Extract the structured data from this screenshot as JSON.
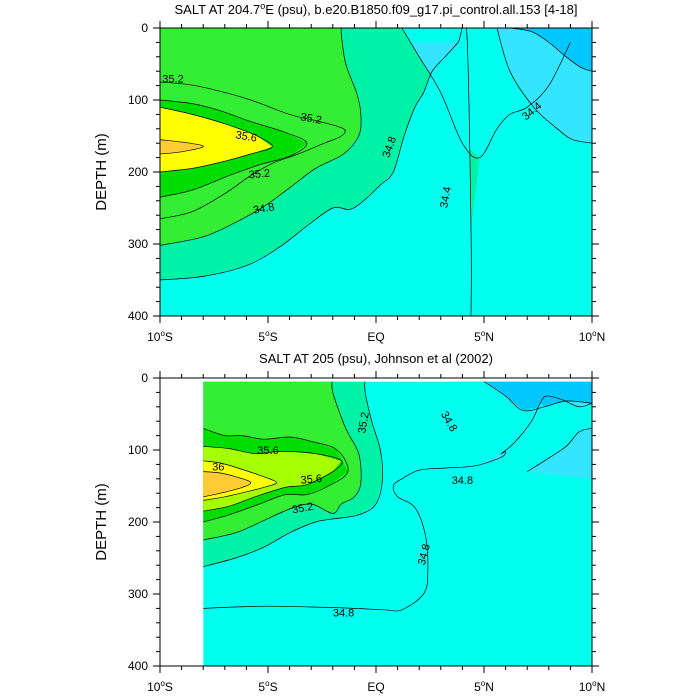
{
  "chart_data": [
    {
      "type": "contour",
      "title": "SALT AT 204.7",
      "title_sup": "o",
      "title_rest": "E (psu), b.e20.B1850.f09_g17.pi_control.all.153 [4-18]",
      "ylabel": "DEPTH (m)",
      "xlim": [
        -10,
        10
      ],
      "ylim": [
        400,
        0
      ],
      "xticks": [
        {
          "value": -10,
          "num": "10",
          "sup": "o",
          "hemi": "S"
        },
        {
          "value": -5,
          "num": "5",
          "sup": "o",
          "hemi": "S"
        },
        {
          "value": 0,
          "num": "EQ",
          "sup": "",
          "hemi": ""
        },
        {
          "value": 5,
          "num": "5",
          "sup": "o",
          "hemi": "N"
        },
        {
          "value": 10,
          "num": "10",
          "sup": "o",
          "hemi": "N"
        }
      ],
      "yticks": [
        "0",
        "100",
        "200",
        "300",
        "400"
      ],
      "ytick_values": [
        0,
        100,
        200,
        300,
        400
      ],
      "contour_levels": [
        34.2,
        34.4,
        34.8,
        35.0,
        35.2,
        35.4,
        35.6,
        35.8
      ],
      "fill_colors": [
        "#00c8ff",
        "#33e5ff",
        "#00ffee",
        "#00f2a6",
        "#33ee33",
        "#00dd00",
        "#ffff00",
        "#ffcc33"
      ],
      "contours": [
        {
          "level": 34.2,
          "x": [
            6.2,
            7.2,
            8.0,
            8.8,
            9.5,
            10.0
          ],
          "y": [
            0,
            5,
            20,
            40,
            55,
            60
          ]
        },
        {
          "level": 34.4,
          "x": [
            5.6,
            6.2,
            7.3,
            8.4,
            9.1,
            10.0
          ],
          "y": [
            0,
            60,
            110,
            140,
            155,
            160
          ]
        },
        {
          "level": 34.4,
          "x": [
            1.2,
            2.0,
            3.0,
            4.0,
            4.8,
            5.6,
            6.2,
            7.0,
            8.0,
            9.0
          ],
          "y": [
            0,
            40,
            90,
            160,
            180,
            140,
            120,
            110,
            80,
            20
          ]
        },
        {
          "level": 34.8,
          "x": [
            -10.0,
            -8.0,
            -6.0,
            -4.5,
            -3.2,
            -2.0,
            -1.2,
            -0.5,
            0.2,
            0.8,
            1.3,
            1.8,
            2.2,
            2.6,
            3.2,
            3.8,
            4.2,
            4.4,
            4.4
          ],
          "y": [
            350,
            345,
            330,
            305,
            275,
            250,
            252,
            238,
            218,
            200,
            150,
            110,
            90,
            60,
            40,
            20,
            5,
            280,
            400
          ]
        },
        {
          "level": 35.0,
          "x": [
            -10.0,
            -8.0,
            -6.5,
            -5.2,
            -4.0,
            -2.8,
            -1.5,
            -0.8,
            -0.7,
            -0.9,
            -1.4,
            -1.6,
            -1.6
          ],
          "y": [
            302,
            290,
            270,
            248,
            222,
            195,
            175,
            150,
            120,
            90,
            50,
            10,
            0
          ]
        },
        {
          "level": 35.2,
          "x": [
            -10.0,
            -8.5,
            -7.0,
            -5.8,
            -4.8,
            -3.6,
            -2.4,
            -1.6,
            -1.5,
            -2.6,
            -4.0,
            -5.8,
            -7.6,
            -8.8,
            -10.0
          ],
          "y": [
            265,
            255,
            230,
            205,
            188,
            175,
            160,
            150,
            140,
            130,
            120,
            100,
            85,
            78,
            75
          ]
        },
        {
          "level": 35.4,
          "x": [
            -10.0,
            -8.5,
            -6.8,
            -5.4,
            -4.0,
            -3.2,
            -4.2,
            -5.8,
            -7.2,
            -8.5,
            -10.0
          ],
          "y": [
            235,
            225,
            205,
            190,
            178,
            160,
            145,
            130,
            115,
            105,
            100
          ]
        },
        {
          "level": 35.6,
          "x": [
            -10.0,
            -8.5,
            -7.0,
            -5.8,
            -4.8,
            -5.5,
            -6.8,
            -8.5,
            -10.0
          ],
          "y": [
            200,
            195,
            185,
            175,
            165,
            150,
            135,
            120,
            110
          ]
        },
        {
          "level": 35.8,
          "x": [
            -10.0,
            -9.0,
            -8.0,
            -8.6,
            -10.0
          ],
          "y": [
            175,
            172,
            165,
            160,
            155
          ]
        }
      ],
      "contour_labels": [
        {
          "text": "35.2",
          "x": -9.4,
          "y": 70,
          "angle": 0
        },
        {
          "text": "35.2",
          "x": -3.0,
          "y": 125,
          "angle": 10
        },
        {
          "text": "35.6",
          "x": -6.0,
          "y": 150,
          "angle": 10
        },
        {
          "text": "35.2",
          "x": -5.4,
          "y": 202,
          "angle": -5
        },
        {
          "text": "34.8",
          "x": -5.2,
          "y": 250,
          "angle": -10
        },
        {
          "text": "34.8",
          "x": 0.6,
          "y": 165,
          "angle": -70
        },
        {
          "text": "34.4",
          "x": 3.2,
          "y": 235,
          "angle": -80
        },
        {
          "text": "34.4",
          "x": 7.2,
          "y": 115,
          "angle": -40
        }
      ]
    },
    {
      "type": "contour",
      "title": "SALT AT 205 (psu), Johnson et al (2002)",
      "title_sup": "",
      "title_rest": "",
      "ylabel": "DEPTH (m)",
      "xlim": [
        -10,
        10
      ],
      "ylim": [
        400,
        0
      ],
      "data_xmin": -8,
      "xticks": [
        {
          "value": -10,
          "num": "10",
          "sup": "o",
          "hemi": "S"
        },
        {
          "value": -5,
          "num": "5",
          "sup": "o",
          "hemi": "S"
        },
        {
          "value": 0,
          "num": "EQ",
          "sup": "",
          "hemi": ""
        },
        {
          "value": 5,
          "num": "5",
          "sup": "o",
          "hemi": "N"
        },
        {
          "value": 10,
          "num": "10",
          "sup": "o",
          "hemi": "N"
        }
      ],
      "yticks": [
        "0",
        "100",
        "200",
        "300",
        "400"
      ],
      "ytick_values": [
        0,
        100,
        200,
        300,
        400
      ],
      "contour_levels": [
        34.2,
        34.4,
        34.8,
        35.0,
        35.2,
        35.4,
        35.6,
        35.8,
        36.0
      ],
      "fill_colors": [
        "#00c8ff",
        "#33e5ff",
        "#00ffee",
        "#00f2a6",
        "#33ee33",
        "#00dd00",
        "#a6ff00",
        "#ffff00",
        "#ffcc33"
      ],
      "contours": [
        {
          "level": 34.4,
          "x": [
            5.0,
            6.0,
            6.8,
            7.8,
            8.8,
            10.0
          ],
          "y": [
            5,
            25,
            45,
            40,
            32,
            35
          ]
        },
        {
          "level": 34.4,
          "x": [
            7.0,
            7.8,
            8.8,
            9.4,
            10.0
          ],
          "y": [
            130,
            115,
            95,
            75,
            70
          ]
        },
        {
          "level": 34.8,
          "x": [
            -8.0,
            -6.5,
            -5.0,
            -3.0,
            -1.0,
            0.4,
            1.2,
            2.2,
            2.4,
            2.3,
            1.8,
            1.0,
            0.8,
            1.2,
            2.0,
            3.2,
            4.6,
            5.8,
            6.0,
            5.8,
            6.4,
            7.2,
            7.6,
            7.9,
            8.6,
            9.4,
            10.0
          ],
          "y": [
            320,
            318,
            317,
            318,
            320,
            322,
            322,
            300,
            270,
            220,
            180,
            165,
            150,
            140,
            128,
            125,
            122,
            110,
            102,
            105,
            90,
            60,
            35,
            25,
            30,
            40,
            35
          ]
        },
        {
          "level": 35.0,
          "x": [
            -8.0,
            -6.5,
            -5.2,
            -4.0,
            -2.8,
            -1.8,
            -0.8,
            0.0,
            0.3,
            0.2,
            -0.2,
            -0.5,
            -0.5
          ],
          "y": [
            262,
            250,
            235,
            215,
            200,
            195,
            190,
            175,
            140,
            100,
            60,
            20,
            0
          ]
        },
        {
          "level": 35.2,
          "x": [
            -8.0,
            -6.5,
            -5.2,
            -4.0,
            -3.0,
            -2.0,
            -1.6,
            -1.0,
            -0.7,
            -0.8,
            -1.4,
            -2.0,
            -2.0
          ],
          "y": [
            225,
            215,
            198,
            182,
            175,
            188,
            175,
            165,
            145,
            105,
            70,
            20,
            0
          ]
        },
        {
          "level": 35.4,
          "x": [
            -8.0,
            -6.8,
            -5.4,
            -4.2,
            -3.2,
            -2.2,
            -1.3,
            -1.8,
            -3.0,
            -4.0,
            -5.2,
            -6.2,
            -7.0,
            -8.0
          ],
          "y": [
            200,
            190,
            175,
            162,
            162,
            150,
            130,
            100,
            88,
            82,
            85,
            80,
            80,
            70
          ]
        },
        {
          "level": 35.6,
          "x": [
            -8.0,
            -6.8,
            -5.6,
            -4.2,
            -3.2,
            -2.0,
            -1.6,
            -2.8,
            -4.4,
            -5.6,
            -6.8,
            -8.0
          ],
          "y": [
            185,
            178,
            165,
            152,
            148,
            130,
            115,
            105,
            102,
            105,
            98,
            95
          ]
        },
        {
          "level": 35.8,
          "x": [
            -8.0,
            -7.0,
            -6.0,
            -5.2,
            -4.6,
            -5.4,
            -6.4,
            -7.2,
            -8.0
          ],
          "y": [
            170,
            165,
            158,
            152,
            145,
            135,
            125,
            118,
            115
          ]
        },
        {
          "level": 36.0,
          "x": [
            -8.0,
            -7.2,
            -6.2,
            -5.8,
            -6.4,
            -7.2,
            -8.0
          ],
          "y": [
            165,
            160,
            152,
            145,
            138,
            132,
            130
          ]
        }
      ],
      "contour_labels": [
        {
          "text": "35.2",
          "x": -0.6,
          "y": 62,
          "angle": -80
        },
        {
          "text": "34.8",
          "x": 3.4,
          "y": 60,
          "angle": 60
        },
        {
          "text": "35.6",
          "x": -5.0,
          "y": 100,
          "angle": 0
        },
        {
          "text": "36",
          "x": -7.3,
          "y": 123,
          "angle": 0
        },
        {
          "text": "35.6",
          "x": -3.0,
          "y": 140,
          "angle": -5
        },
        {
          "text": "35.2",
          "x": -3.4,
          "y": 180,
          "angle": -10
        },
        {
          "text": "34.8",
          "x": 4.0,
          "y": 142,
          "angle": 0
        },
        {
          "text": "34.8",
          "x": 2.2,
          "y": 245,
          "angle": -75
        },
        {
          "text": "34.8",
          "x": -1.5,
          "y": 326,
          "angle": 0
        }
      ]
    }
  ]
}
